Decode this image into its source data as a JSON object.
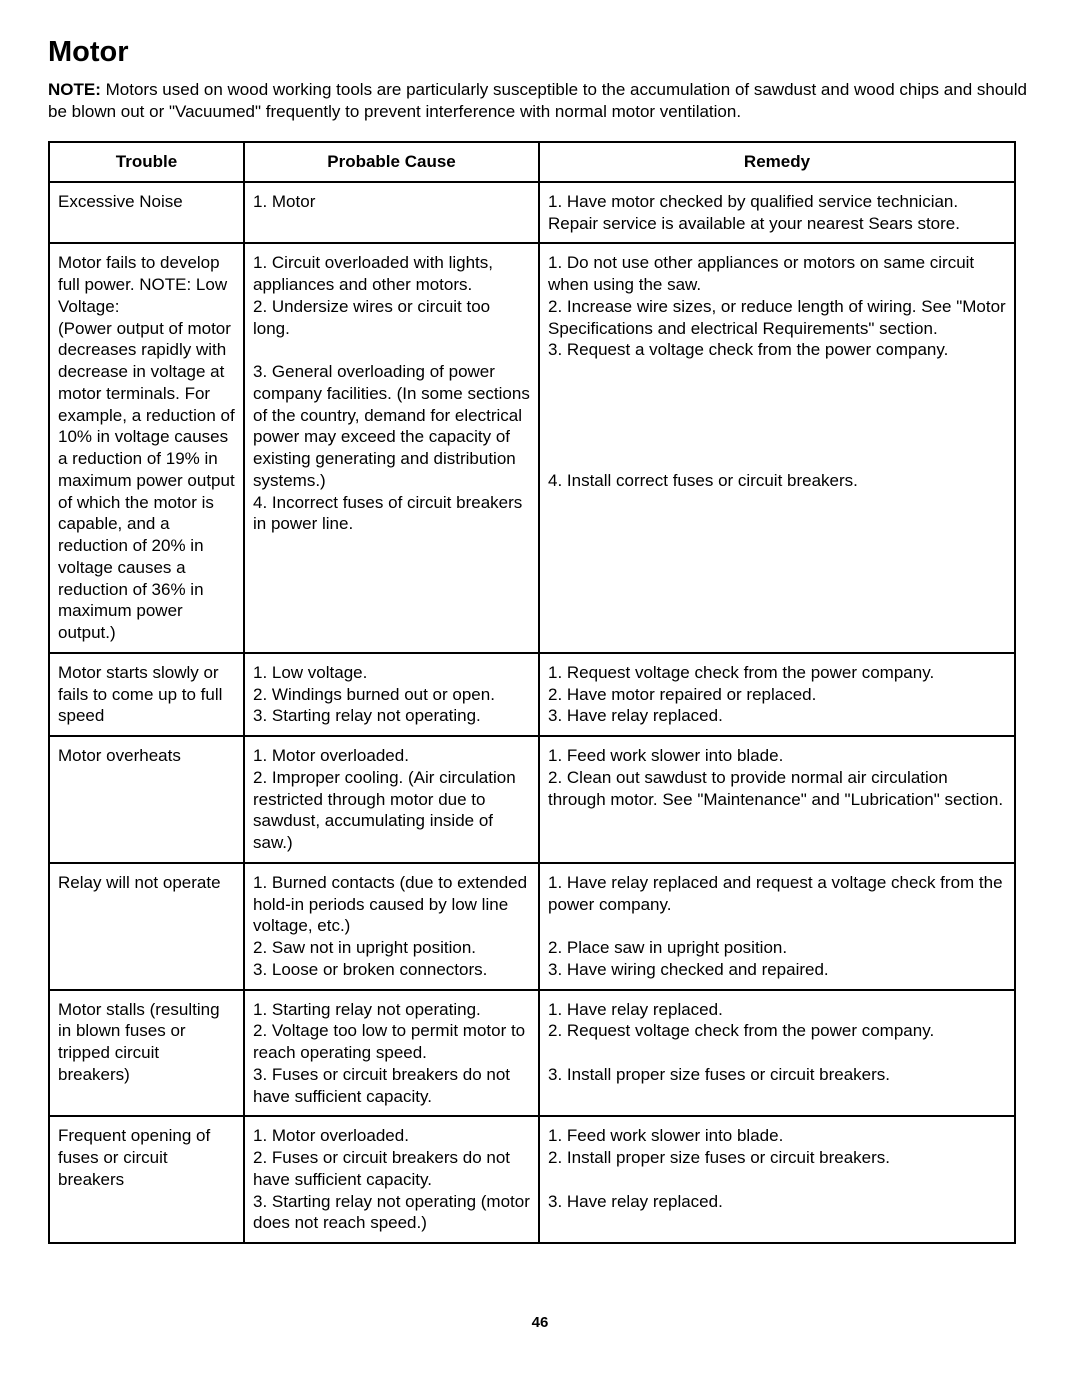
{
  "title": "Motor",
  "noteLabel": "NOTE:",
  "noteText": " Motors used on wood working tools are particularly susceptible to the accumulation of sawdust and wood chips and should be blown out or \"Vacuumed\" frequently to prevent interference with normal motor ventilation.",
  "headers": [
    "Trouble",
    "Probable Cause",
    "Remedy"
  ],
  "rows": [
    {
      "trouble": "Excessive Noise",
      "cause": "1. Motor",
      "remedy": "1. Have motor checked by qualified service technician. Repair service is available at your nearest Sears store."
    },
    {
      "trouble": "Motor fails to develop full power. NOTE: Low Voltage:\n(Power output of motor decreases rapidly with decrease in voltage at motor terminals. For example, a reduction of 10% in voltage causes a reduction of 19% in maximum power output of which the motor is capable, and a reduction of 20% in voltage causes a reduction of 36% in maximum power output.)",
      "cause": "1. Circuit overloaded with lights, appliances and other motors.\n2. Undersize wires or circuit too long.\n\n3. General overloading of power company facilities. (In some sections of the country, demand for electrical power may exceed the capacity of existing generating and distribution systems.)\n4. Incorrect fuses of circuit breakers in power line.",
      "remedy": "1. Do not use other appliances or motors on same circuit when using the saw.\n2. Increase wire sizes, or reduce length of wiring. See \"Motor Specifications and electrical Requirements\" section.\n3. Request a voltage check from the power company.\n\n\n\n\n\n4. Install correct fuses or circuit breakers."
    },
    {
      "trouble": "Motor starts slowly or fails to come up to full speed",
      "cause": "1. Low voltage.\n2. Windings burned out or open.\n3. Starting relay not operating.",
      "remedy": "1. Request voltage check from the power company.\n2. Have motor repaired or replaced.\n3. Have relay replaced."
    },
    {
      "trouble": "Motor overheats",
      "cause": "1. Motor overloaded.\n2. Improper cooling. (Air circulation restricted through motor due to sawdust, accumulating inside of saw.)",
      "remedy": "1. Feed work slower into blade.\n2. Clean out sawdust to provide normal air circulation through motor. See \"Maintenance\" and \"Lubrication\" section."
    },
    {
      "trouble": "Relay will not operate",
      "cause": "1. Burned contacts (due to extended hold-in periods caused by low line voltage, etc.)\n2. Saw not in upright position.\n3. Loose or broken connectors.",
      "remedy": "1. Have relay replaced and request a voltage check from the power company.\n\n2. Place saw in upright position.\n3. Have wiring checked and repaired."
    },
    {
      "trouble": "Motor stalls (resulting in blown fuses or tripped circuit breakers)",
      "cause": "1. Starting relay not operating.\n2. Voltage too low to permit motor to reach operating speed.\n3. Fuses or circuit breakers do not have sufficient capacity.",
      "remedy": "1. Have relay replaced.\n2. Request voltage check from the power company.\n\n3. Install proper size fuses or circuit breakers."
    },
    {
      "trouble": "Frequent opening of fuses or circuit breakers",
      "cause": "1. Motor overloaded.\n2. Fuses or circuit breakers do not have sufficient capacity.\n3. Starting relay not operating (motor does not reach speed.)",
      "remedy": "1. Feed work slower into blade.\n2. Install proper size fuses or circuit breakers.\n\n3. Have relay replaced."
    }
  ],
  "pageNumber": "46"
}
